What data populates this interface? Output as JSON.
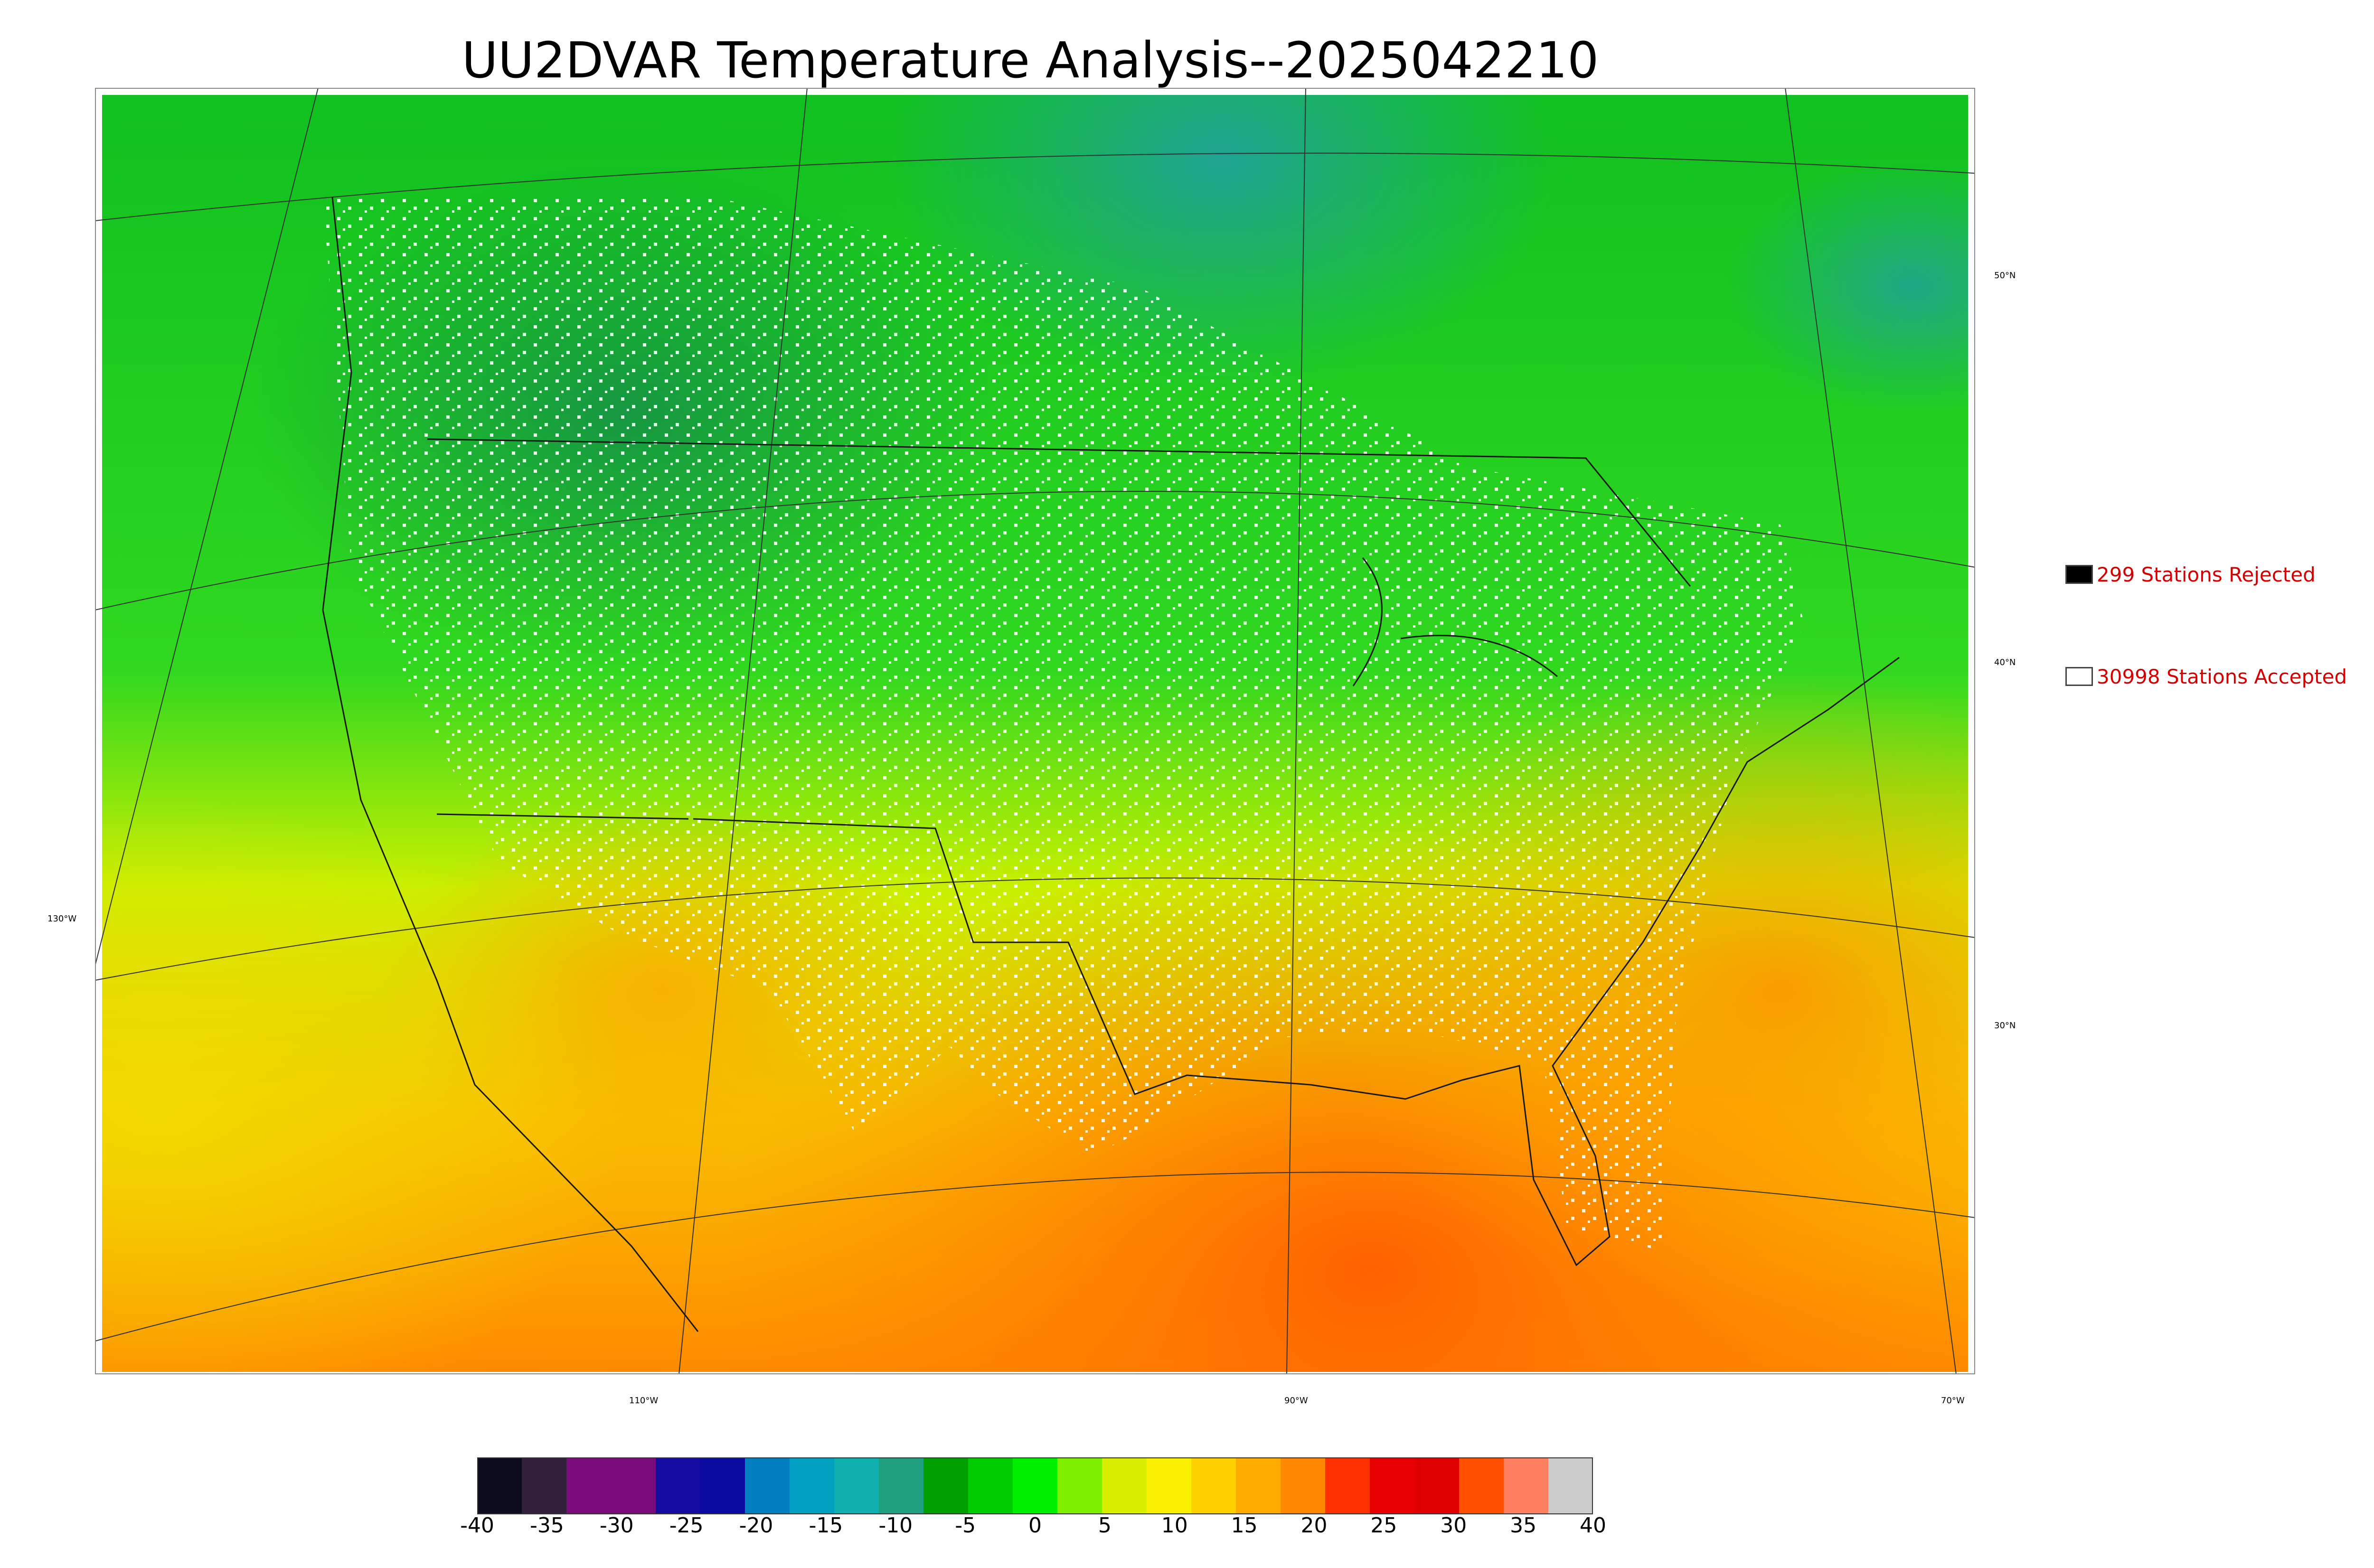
{
  "title": "UU2DVAR Temperature Analysis--2025042210",
  "legend": {
    "rejected": {
      "text": "299 Stations Rejected",
      "swatch_color": "#000000"
    },
    "accepted": {
      "text": "30998 Stations Accepted",
      "swatch_color": "#ffffff"
    },
    "text_color": "#d40000"
  },
  "graticule": {
    "latitudes": [
      "50°N",
      "40°N",
      "30°N"
    ],
    "longitudes": [
      "130°W",
      "110°W",
      "90°W",
      "70°W"
    ]
  },
  "colorbar": {
    "ticks": [
      "-40",
      "-35",
      "-30",
      "-25",
      "-20",
      "-15",
      "-10",
      "-5",
      "0",
      "5",
      "10",
      "15",
      "20",
      "25",
      "30",
      "35",
      "40"
    ],
    "colors": [
      "#0d0d1f",
      "#33203c",
      "#7a0d7a",
      "#7a0d7a",
      "#140aa0",
      "#0a0aa0",
      "#0080c0",
      "#00a0c0",
      "#10b0b0",
      "#20a080",
      "#00a000",
      "#00cc00",
      "#00f000",
      "#80f000",
      "#d8f000",
      "#f8f000",
      "#ffd000",
      "#ffaa00",
      "#ff8800",
      "#ff3000",
      "#e80000",
      "#e00000",
      "#ff5000",
      "#ff8060",
      "#cccccc"
    ]
  }
}
